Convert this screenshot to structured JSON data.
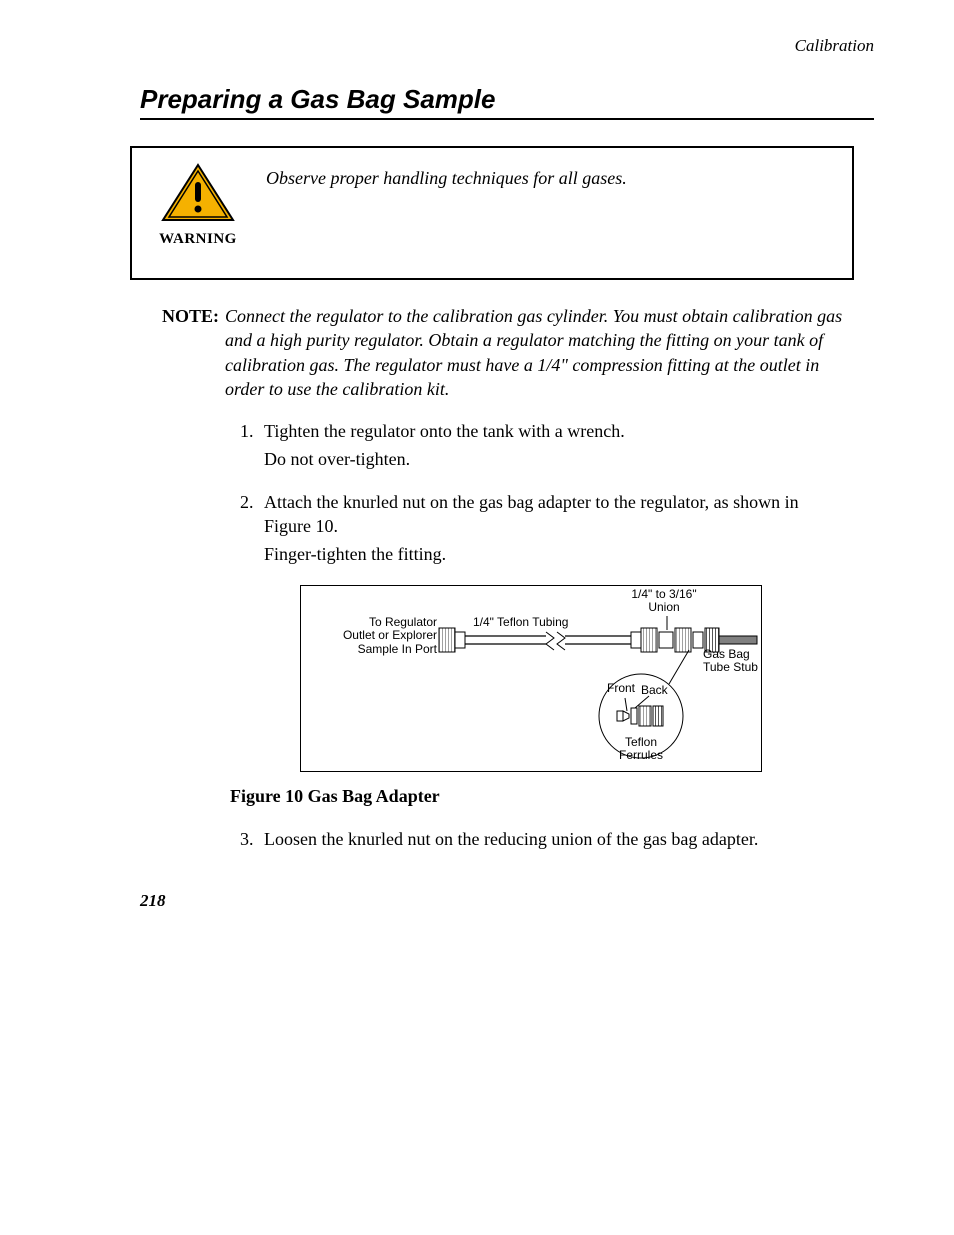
{
  "header": {
    "section": "Calibration"
  },
  "title": "Preparing a Gas Bag Sample",
  "warning": {
    "label": "WARNING",
    "text": "Observe proper handling techniques for all gases.",
    "icon_colors": {
      "fill": "#f5b100",
      "stroke": "#000000",
      "bang": "#000000"
    }
  },
  "note": {
    "label": "NOTE:",
    "text": "Connect the regulator to the calibration gas cylinder. You must obtain calibration gas and a high purity regulator. Obtain a regulator matching the fitting on your tank of calibration gas. The regulator must have a 1/4\" compression fitting at the outlet in order to use the calibration kit."
  },
  "steps": [
    {
      "main": "Tighten the regulator onto the tank with a wrench.",
      "sub": "Do not over-tighten."
    },
    {
      "main": "Attach the knurled nut on the gas bag adapter to the regulator, as shown in Figure 10.",
      "sub": "Finger-tighten the fitting."
    },
    {
      "main": "Loosen the knurled nut on the reducing union of the gas bag adapter."
    }
  ],
  "figure": {
    "caption": "Figure 10 Gas Bag Adapter",
    "labels": {
      "union": "1/4\" to 3/16\"\nUnion",
      "tubing": "1/4\" Teflon Tubing",
      "regulator": "To Regulator\nOutlet or Explorer\nSample In Port",
      "gasbag": "Gas Bag\nTube Stub",
      "front": "Front",
      "back": "Back",
      "ferrules": "Teflon\nFerrules"
    },
    "colors": {
      "hatched": "#808080",
      "line": "#000000"
    }
  },
  "page_number": "218"
}
